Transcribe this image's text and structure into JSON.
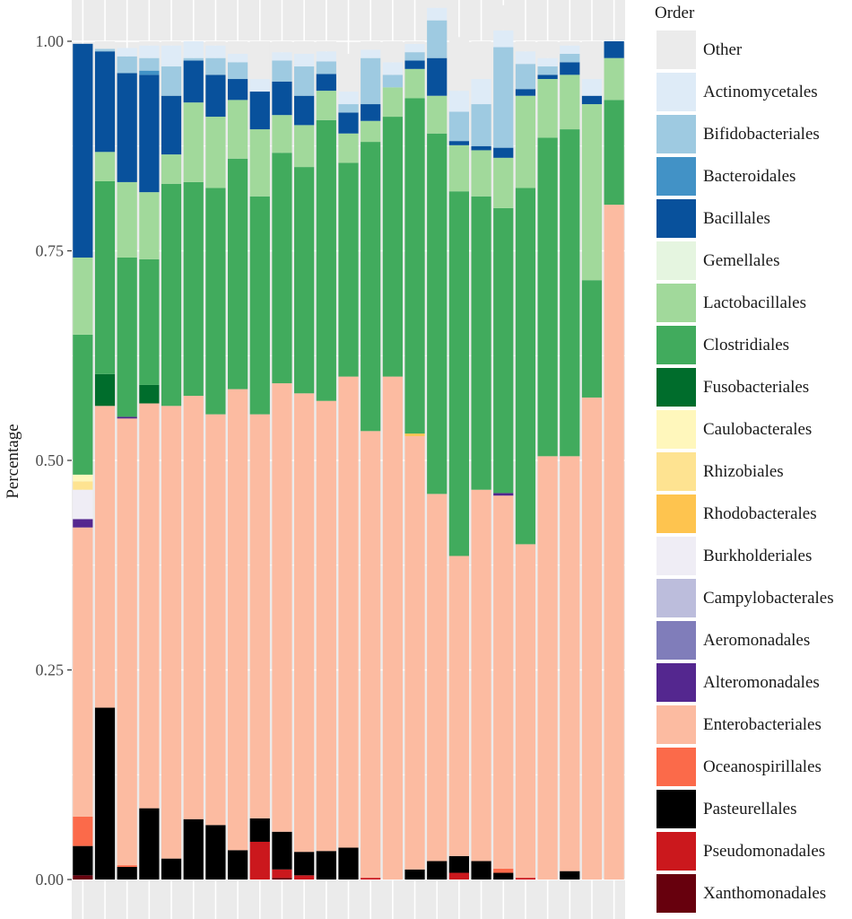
{
  "chart_data": {
    "type": "bar",
    "stacked": true,
    "title": "",
    "xlabel": "",
    "ylabel": "Percentage",
    "ylim": [
      0,
      1
    ],
    "yticks": [
      "0.00",
      "0.25",
      "0.50",
      "0.75",
      "1.00"
    ],
    "grid": true,
    "legend_title": "Order",
    "legend_position": "right",
    "series": [
      {
        "name": "Xanthomonadales",
        "color": "#67000d",
        "values": [
          0.005,
          0,
          0,
          0,
          0,
          0,
          0,
          0,
          0,
          0.002,
          0,
          0,
          0,
          0,
          0,
          0,
          0,
          0,
          0,
          0,
          0,
          0,
          0,
          0,
          0
        ]
      },
      {
        "name": "Pseudomonadales",
        "color": "#cb181d",
        "values": [
          0,
          0,
          0,
          0,
          0,
          0,
          0,
          0,
          0.045,
          0.01,
          0.005,
          0,
          0,
          0.002,
          0,
          0,
          0,
          0.008,
          0,
          0,
          0.002,
          0,
          0,
          0,
          0
        ]
      },
      {
        "name": "Pasteurellales",
        "color": "#000000",
        "values": [
          0.035,
          0.205,
          0.015,
          0.085,
          0.025,
          0.072,
          0.065,
          0.035,
          0.028,
          0.045,
          0.028,
          0.034,
          0.038,
          0,
          0,
          0.012,
          0.022,
          0.02,
          0.022,
          0.008,
          0,
          0,
          0.01,
          0,
          0
        ]
      },
      {
        "name": "Oceanospirillales",
        "color": "#fb6a4a",
        "values": [
          0.035,
          0,
          0.002,
          0,
          0,
          0,
          0,
          0,
          0,
          0,
          0,
          0,
          0,
          0,
          0,
          0,
          0,
          0,
          0,
          0.005,
          0,
          0,
          0,
          0,
          0
        ]
      },
      {
        "name": "Enterobacteriales",
        "color": "#fcbba1",
        "values": [
          0.345,
          0.36,
          0.533,
          0.483,
          0.54,
          0.505,
          0.49,
          0.55,
          0.482,
          0.535,
          0.547,
          0.537,
          0.562,
          0.533,
          0.6,
          0.517,
          0.438,
          0.358,
          0.443,
          0.445,
          0.398,
          0.505,
          0.495,
          0.575,
          0.805
        ]
      },
      {
        "name": "Alteromonadales",
        "color": "#54278f",
        "values": [
          0.01,
          0,
          0.002,
          0,
          0,
          0,
          0,
          0,
          0,
          0,
          0,
          0,
          0,
          0,
          0,
          0,
          0,
          0,
          0,
          0.003,
          0,
          0,
          0,
          0,
          0
        ]
      },
      {
        "name": "Aeromonadales",
        "color": "#807dba",
        "values": [
          0,
          0,
          0,
          0,
          0,
          0,
          0,
          0,
          0,
          0,
          0,
          0,
          0,
          0,
          0,
          0,
          0,
          0,
          0,
          0,
          0,
          0,
          0,
          0,
          0
        ]
      },
      {
        "name": "Campylobacterales",
        "color": "#bcbddc",
        "values": [
          0,
          0,
          0,
          0,
          0,
          0,
          0,
          0,
          0,
          0,
          0,
          0,
          0,
          0,
          0,
          0,
          0,
          0,
          0,
          0,
          0,
          0,
          0,
          0,
          0
        ]
      },
      {
        "name": "Burkholderiales",
        "color": "#efedf5",
        "values": [
          0.035,
          0,
          0,
          0,
          0,
          0,
          0,
          0,
          0,
          0,
          0,
          0,
          0,
          0,
          0,
          0,
          0,
          0,
          0,
          0,
          0,
          0,
          0,
          0,
          0
        ]
      },
      {
        "name": "Rhodobacterales",
        "color": "#fec44f",
        "values": [
          0,
          0,
          0,
          0,
          0,
          0,
          0,
          0,
          0,
          0,
          0,
          0,
          0,
          0,
          0,
          0.003,
          0,
          0,
          0,
          0,
          0,
          0,
          0,
          0,
          0
        ]
      },
      {
        "name": "Rhizobiales",
        "color": "#fee391",
        "values": [
          0.01,
          0,
          0,
          0,
          0,
          0,
          0,
          0,
          0,
          0,
          0,
          0,
          0,
          0,
          0,
          0,
          0,
          0,
          0,
          0,
          0,
          0,
          0,
          0,
          0
        ]
      },
      {
        "name": "Caulobacterales",
        "color": "#fff7bc",
        "values": [
          0.008,
          0,
          0,
          0,
          0,
          0,
          0,
          0,
          0,
          0,
          0,
          0,
          0,
          0,
          0,
          0,
          0,
          0,
          0,
          0,
          0,
          0,
          0,
          0,
          0
        ]
      },
      {
        "name": "Fusobacteriales",
        "color": "#006d2c",
        "values": [
          0,
          0.038,
          0,
          0.022,
          0,
          0,
          0,
          0,
          0,
          0,
          0,
          0,
          0,
          0,
          0,
          0,
          0,
          0,
          0,
          0,
          0,
          0,
          0,
          0,
          0
        ]
      },
      {
        "name": "Clostridiales",
        "color": "#41ab5d",
        "values": [
          0.167,
          0.23,
          0.19,
          0.15,
          0.265,
          0.255,
          0.27,
          0.275,
          0.26,
          0.275,
          0.27,
          0.335,
          0.255,
          0.345,
          0.31,
          0.4,
          0.43,
          0.435,
          0.35,
          0.34,
          0.425,
          0.38,
          0.39,
          0.14,
          0.125
        ]
      },
      {
        "name": "Lactobacillales",
        "color": "#a1d99b",
        "values": [
          0.092,
          0.035,
          0.09,
          0.08,
          0.035,
          0.095,
          0.085,
          0.07,
          0.08,
          0.045,
          0.05,
          0.035,
          0.035,
          0.025,
          0.035,
          0.035,
          0.045,
          0.055,
          0.055,
          0.06,
          0.11,
          0.07,
          0.065,
          0.21,
          0.05
        ]
      },
      {
        "name": "Gemellales",
        "color": "#e5f5e0",
        "values": [
          0,
          0,
          0,
          0,
          0,
          0,
          0,
          0,
          0,
          0,
          0,
          0,
          0,
          0,
          0,
          0,
          0,
          0,
          0,
          0,
          0,
          0,
          0,
          0,
          0
        ]
      },
      {
        "name": "Bacillales",
        "color": "#08519c",
        "values": [
          0.255,
          0.12,
          0.13,
          0.14,
          0.07,
          0.05,
          0.05,
          0.025,
          0.045,
          0.04,
          0.035,
          0.02,
          0.025,
          0.02,
          0,
          0.01,
          0.045,
          0.005,
          0.005,
          0.012,
          0.008,
          0.005,
          0.015,
          0.01,
          0.02
        ]
      },
      {
        "name": "Bacteroidales",
        "color": "#4292c6",
        "values": [
          0,
          0,
          0,
          0.005,
          0,
          0,
          0,
          0,
          0,
          0,
          0,
          0,
          0,
          0,
          0,
          0,
          0,
          0,
          0,
          0,
          0,
          0,
          0,
          0,
          0
        ]
      },
      {
        "name": "Bifidobacteriales",
        "color": "#9ecae1",
        "values": [
          0,
          0.003,
          0.02,
          0.015,
          0.035,
          0.003,
          0.02,
          0.02,
          0,
          0.025,
          0.035,
          0.015,
          0.01,
          0.055,
          0.015,
          0.01,
          0.045,
          0.035,
          0.05,
          0.12,
          0.03,
          0.01,
          0.01,
          0,
          0
        ]
      },
      {
        "name": "Actinomycetales",
        "color": "#deebf7",
        "values": [
          0,
          0,
          0.01,
          0.015,
          0.025,
          0.02,
          0.015,
          0.01,
          0.015,
          0.01,
          0.015,
          0.012,
          0.015,
          0.01,
          0.015,
          0.01,
          0.015,
          0.025,
          0.03,
          0.02,
          0.015,
          0.01,
          0.01,
          0.02,
          0
        ]
      },
      {
        "name": "Other",
        "color": "#ebebeb",
        "values": [
          0,
          0.009,
          0,
          0.005,
          0.005,
          0,
          0.005,
          0.015,
          0.045,
          0.013,
          0.015,
          0.012,
          0.045,
          0.01,
          0.025,
          0.003,
          0.015,
          0.064,
          0.045,
          0.03,
          0.012,
          0.02,
          0.005,
          0.045,
          0
        ]
      }
    ],
    "bar_count": 25
  }
}
